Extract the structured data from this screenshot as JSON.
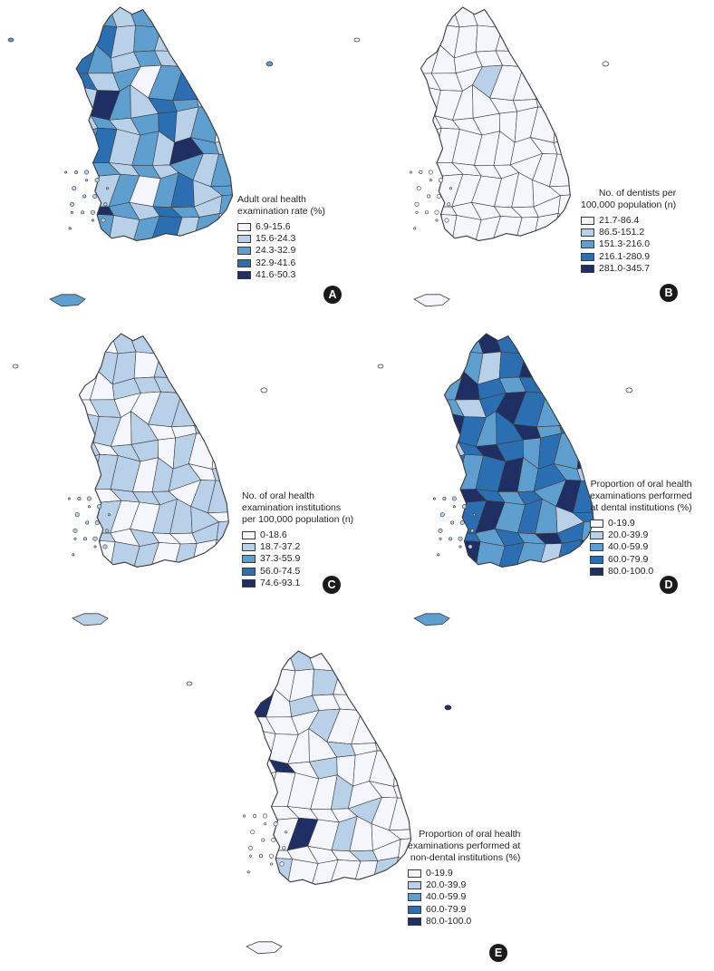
{
  "colors": {
    "c0": "#f4f6fb",
    "c1": "#b9d0e9",
    "c2": "#5f9fcf",
    "c3": "#2b6fb2",
    "c4": "#1f2f63",
    "outline": "#3a3a3a"
  },
  "panels": [
    {
      "id": "A",
      "label": "A",
      "title_lines": [
        "Adult oral health",
        "examination rate (%)"
      ],
      "legend": [
        "6.9-15.6",
        "15.6-24.3",
        "24.3-32.9",
        "32.9-41.6",
        "41.6-50.3"
      ],
      "map_shading": "dominant 15.6-24.3 and 24.3-32.9 classes with scattered 32.9-41.6 regions and a few 41.6-50.3 regions in the central inland area"
    },
    {
      "id": "B",
      "label": "B",
      "title_lines": [
        "No. of dentists per",
        "100,000 population (n)"
      ],
      "legend": [
        "21.7-86.4",
        "86.5-151.2",
        "151.3-216.0",
        "216.1-280.9",
        "281.0-345.7"
      ],
      "map_shading": "almost entirely 21.7-86.4 with one 86.5-151.2 region in the northeast"
    },
    {
      "id": "C",
      "label": "C",
      "title_lines": [
        "No. of oral health",
        "examination institutions",
        "per 100,000 population (n)"
      ],
      "legend": [
        "0-18.6",
        "18.7-37.2",
        "37.3-55.9",
        "56.0-74.5",
        "74.6-93.1"
      ],
      "map_shading": "mixture of 0-18.6 and 18.7-37.2 classes"
    },
    {
      "id": "D",
      "label": "D",
      "title_lines": [
        "Proportion of oral health",
        "examinations performed",
        "at dental institutions (%)"
      ],
      "legend": [
        "0-19.9",
        "20.0-39.9",
        "40.0-59.9",
        "60.0-79.9",
        "80.0-100.0"
      ],
      "map_shading": "mostly 40.0-59.9 and 60.0-79.9 with 80.0-100.0 concentrated in the northwest metropolitan area"
    },
    {
      "id": "E",
      "label": "E",
      "title_lines": [
        "Proportion of oral health",
        "examinations performed at",
        "non-dental institutions (%)"
      ],
      "legend": [
        "0-19.9",
        "20.0-39.9",
        "40.0-59.9",
        "60.0-79.9",
        "80.0-100.0"
      ],
      "map_shading": "mostly 0-19.9 with scattered 20.0-39.9 and a few 80.0-100.0 regions"
    }
  ]
}
